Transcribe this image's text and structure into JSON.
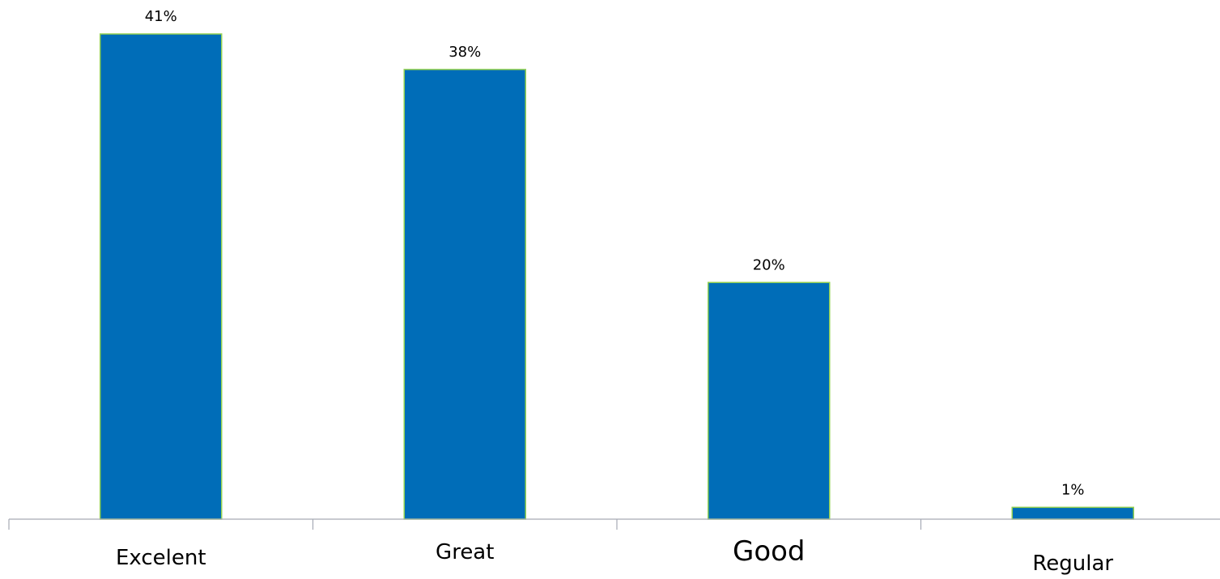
{
  "chart_data": {
    "type": "bar",
    "categories": [
      "Excelent",
      "Great",
      "Good",
      "Regular"
    ],
    "values": [
      41,
      38,
      20,
      1
    ],
    "data_labels": [
      "41%",
      "38%",
      "20%",
      "1%"
    ],
    "title": "",
    "xlabel": "",
    "ylabel": "",
    "unit": "%",
    "ylim": [
      0,
      41
    ],
    "grid": false,
    "legend": "none",
    "colors": {
      "bar_fill": "#006db8",
      "bar_stroke": "#92d050",
      "axis": "#a6aab5",
      "text": "#000000"
    }
  }
}
